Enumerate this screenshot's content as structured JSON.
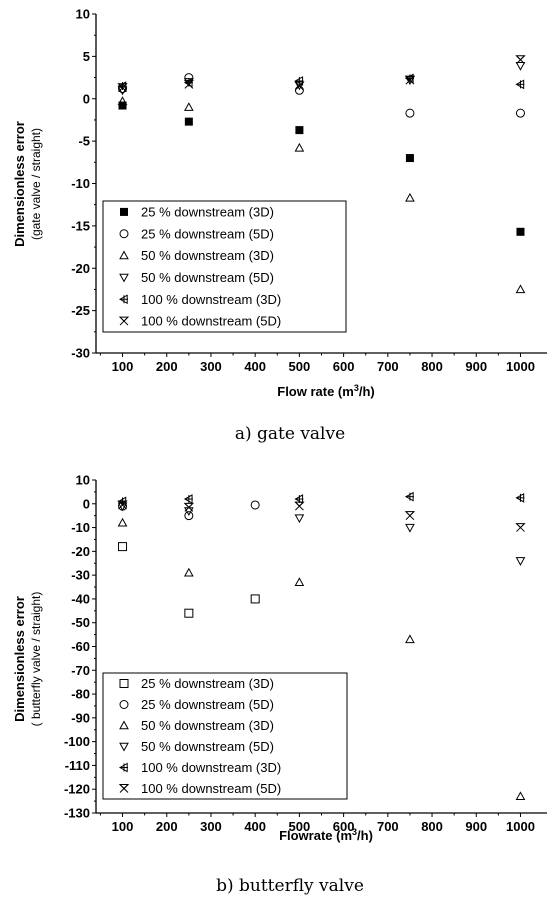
{
  "chart_data": [
    {
      "type": "scatter",
      "caption": "a)  gate  valve",
      "xlabel": "Flow rate (m",
      "xlabel_sup": "3",
      "xlabel_end": "/h)",
      "ylabel_line1": "Dimensionless error",
      "ylabel_line2": "(gate valve / straight)",
      "xlim": [
        40,
        1060
      ],
      "ylim": [
        -30,
        10
      ],
      "xticks": [
        100,
        200,
        300,
        400,
        500,
        600,
        700,
        800,
        900,
        1000
      ],
      "yticks": [
        10,
        5,
        0,
        -5,
        -10,
        -15,
        -20,
        -25,
        -30
      ],
      "legend_position": "lower-left",
      "series": [
        {
          "name": "25 % downstream (3D)",
          "marker": "filled-square",
          "x": [
            100,
            250,
            500,
            750,
            1000
          ],
          "y": [
            -0.8,
            -2.7,
            -3.7,
            -7.0,
            -15.7
          ]
        },
        {
          "name": "25 % downstream (5D)",
          "marker": "circle",
          "x": [
            100,
            250,
            500,
            750,
            1000
          ],
          "y": [
            1.2,
            2.5,
            1.0,
            -1.7,
            -1.7
          ]
        },
        {
          "name": "50 % downstream (3D)",
          "marker": "triangle-up",
          "x": [
            100,
            250,
            500,
            750,
            1000
          ],
          "y": [
            -0.3,
            -1.0,
            -5.8,
            -11.7,
            -22.5
          ]
        },
        {
          "name": "50 % downstream (5D)",
          "marker": "triangle-down",
          "x": [
            100,
            250,
            500,
            750,
            1000
          ],
          "y": [
            1.0,
            2.0,
            1.6,
            2.2,
            3.9
          ]
        },
        {
          "name": "100 % downstream (3D)",
          "marker": "tri-left-plus",
          "x": [
            100,
            250,
            500,
            750,
            1000
          ],
          "y": [
            1.5,
            1.9,
            2.1,
            2.4,
            1.7
          ]
        },
        {
          "name": "100 % downstream (5D)",
          "marker": "x-tri",
          "x": [
            100,
            250,
            500,
            750,
            1000
          ],
          "y": [
            1.3,
            1.7,
            1.5,
            2.2,
            4.6
          ]
        }
      ]
    },
    {
      "type": "scatter",
      "caption": "b)  butterfly  valve",
      "xlabel": "Flowrate (m",
      "xlabel_sup": "3",
      "xlabel_end": "/h)",
      "ylabel_line1": "Dimensionless error",
      "ylabel_line2": "( butterfly valve / straight)",
      "xlim": [
        40,
        1060
      ],
      "ylim": [
        -130,
        10
      ],
      "xticks": [
        100,
        200,
        300,
        400,
        500,
        600,
        700,
        800,
        900,
        1000
      ],
      "yticks": [
        10,
        0,
        -10,
        -20,
        -30,
        -40,
        -50,
        -60,
        -70,
        -80,
        -90,
        -100,
        -110,
        -120,
        -130
      ],
      "legend_position": "lower-left",
      "series": [
        {
          "name": "25 % downstream (3D)",
          "marker": "square",
          "x": [
            100,
            250,
            400
          ],
          "y": [
            -18,
            -46,
            -40
          ]
        },
        {
          "name": "25 % downstream (5D)",
          "marker": "circle",
          "x": [
            100,
            250,
            400
          ],
          "y": [
            -1,
            -5,
            -0.5
          ]
        },
        {
          "name": "50 % downstream (3D)",
          "marker": "triangle-up",
          "x": [
            100,
            250,
            500,
            750,
            1000
          ],
          "y": [
            -8,
            -29,
            -33,
            -57,
            -123
          ]
        },
        {
          "name": "50 % downstream (5D)",
          "marker": "triangle-down",
          "x": [
            100,
            250,
            500,
            750,
            1000
          ],
          "y": [
            -1,
            -3,
            -6,
            -10,
            -24
          ]
        },
        {
          "name": "100 % downstream (3D)",
          "marker": "tri-left-plus",
          "x": [
            100,
            250,
            500,
            750,
            1000
          ],
          "y": [
            1,
            2,
            2,
            3,
            2.5
          ]
        },
        {
          "name": "100 % downstream (5D)",
          "marker": "x-tri",
          "x": [
            100,
            250,
            500,
            750,
            1000
          ],
          "y": [
            -0.5,
            -1.5,
            -1,
            -5,
            -10
          ]
        }
      ]
    }
  ]
}
